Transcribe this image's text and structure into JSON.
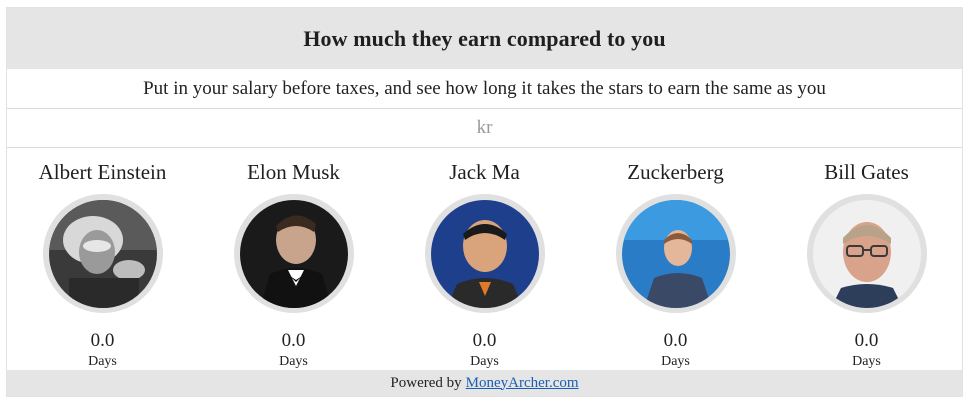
{
  "header": {
    "title": "How much they earn compared to you"
  },
  "subtitle": "Put in your salary before taxes, and see how long it takes the stars to earn the same as you",
  "salary_input": {
    "placeholder": "kr",
    "value": ""
  },
  "stars": [
    {
      "name": "Albert Einstein",
      "value": "0.0",
      "unit": "Days"
    },
    {
      "name": "Elon Musk",
      "value": "0.0",
      "unit": "Days"
    },
    {
      "name": "Jack Ma",
      "value": "0.0",
      "unit": "Days"
    },
    {
      "name": "Zuckerberg",
      "value": "0.0",
      "unit": "Days"
    },
    {
      "name": "Bill Gates",
      "value": "0.0",
      "unit": "Days"
    }
  ],
  "footer": {
    "powered_by": "Powered by",
    "link_text": "MoneyArcher.com"
  }
}
